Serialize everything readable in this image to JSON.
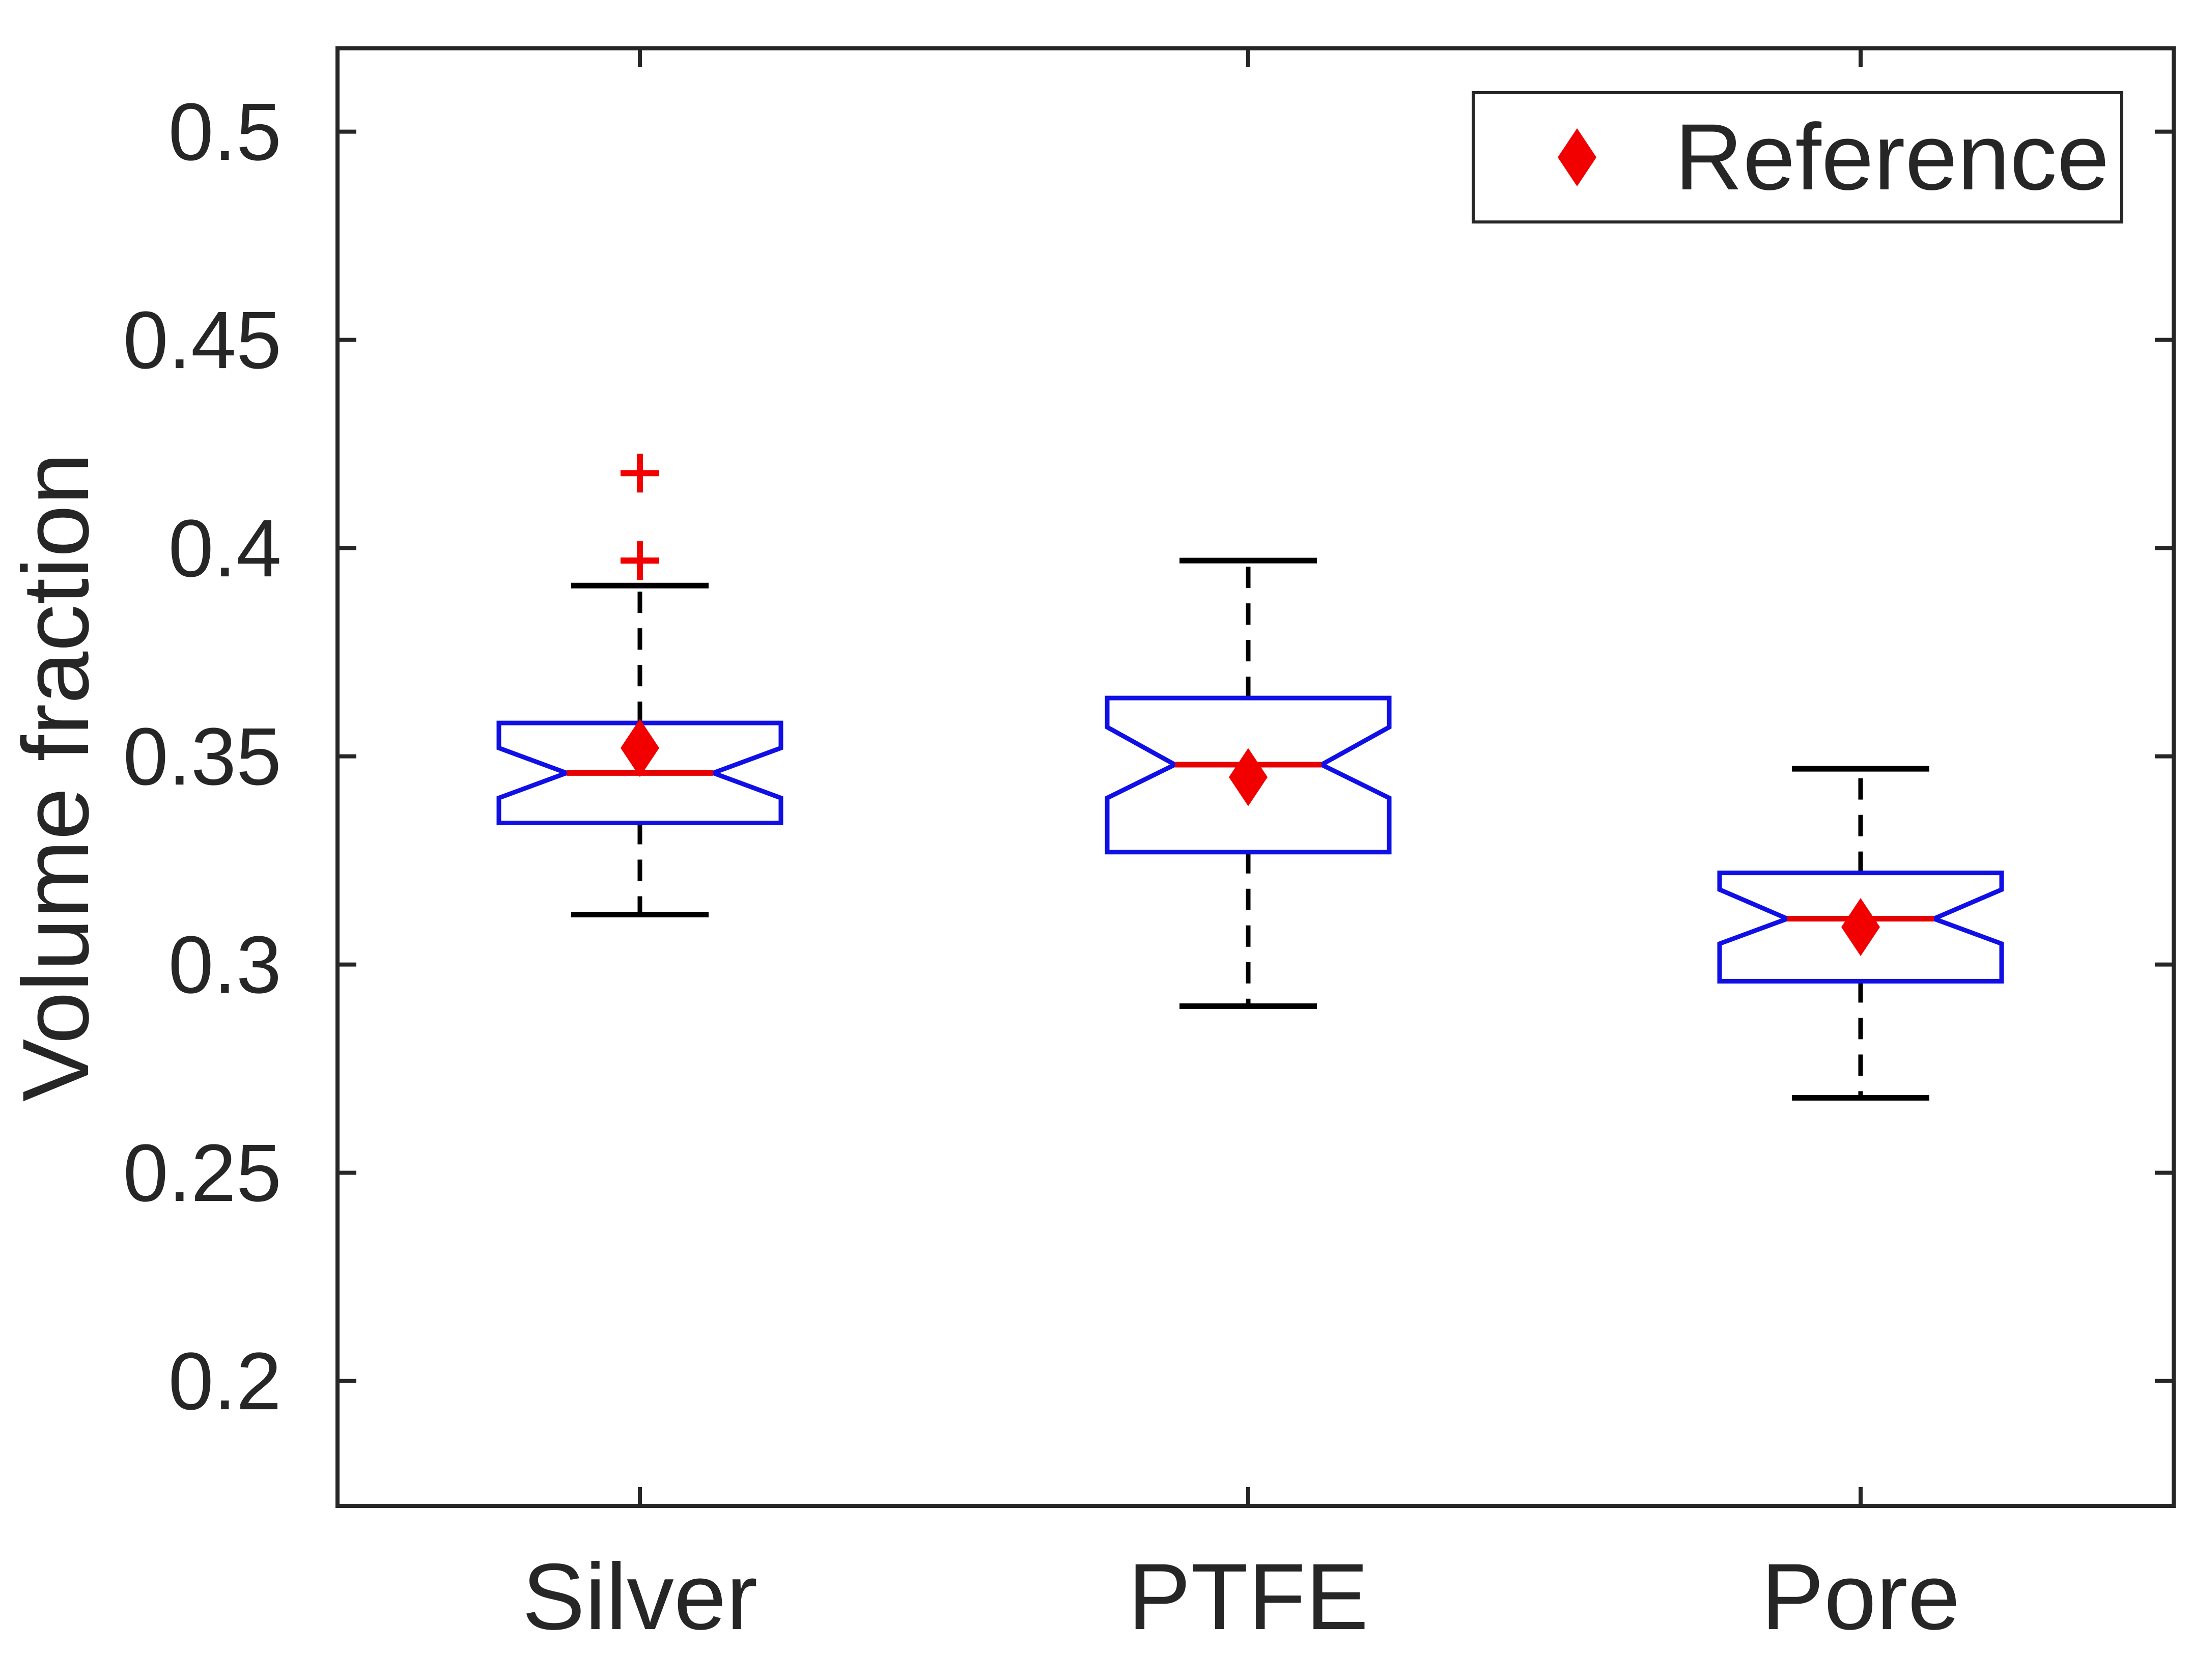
{
  "figure": {
    "background": "#ffffff",
    "axis_color": "#262626",
    "box_color": "#0f0fe6",
    "median_color": "#e60000",
    "whisker_color": "#000000",
    "outlier_color": "#f20000",
    "reference_color": "#f20000"
  },
  "legend": {
    "label": "Reference",
    "marker": "diamond-icon",
    "position": "top-right"
  },
  "chart_data": {
    "type": "boxplot",
    "title": "",
    "xlabel": "",
    "ylabel": "Volume fraction",
    "ylim": [
      0.17,
      0.52
    ],
    "yticks": [
      0.5,
      0.45,
      0.4,
      0.35,
      0.3,
      0.25,
      0.2
    ],
    "ytick_labels": [
      "0.5",
      "0.45",
      "0.4",
      "0.35",
      "0.3",
      "0.25",
      "0.2"
    ],
    "categories": [
      "Silver",
      "PTFE",
      "Pore"
    ],
    "grid": false,
    "notched": true,
    "legend_position": "top-right",
    "series": [
      {
        "name": "Silver",
        "whisker_low": 0.312,
        "q1": 0.334,
        "median": 0.346,
        "q3": 0.358,
        "whisker_high": 0.391,
        "notch_low": 0.34,
        "notch_high": 0.352,
        "outliers": [
          0.397,
          0.418
        ],
        "reference": 0.352
      },
      {
        "name": "PTFE",
        "whisker_low": 0.29,
        "q1": 0.327,
        "median": 0.348,
        "q3": 0.364,
        "whisker_high": 0.397,
        "notch_low": 0.34,
        "notch_high": 0.357,
        "outliers": [],
        "reference": 0.345
      },
      {
        "name": "Pore",
        "whisker_low": 0.268,
        "q1": 0.296,
        "median": 0.311,
        "q3": 0.322,
        "whisker_high": 0.347,
        "notch_low": 0.305,
        "notch_high": 0.318,
        "outliers": [],
        "reference": 0.309
      }
    ]
  }
}
